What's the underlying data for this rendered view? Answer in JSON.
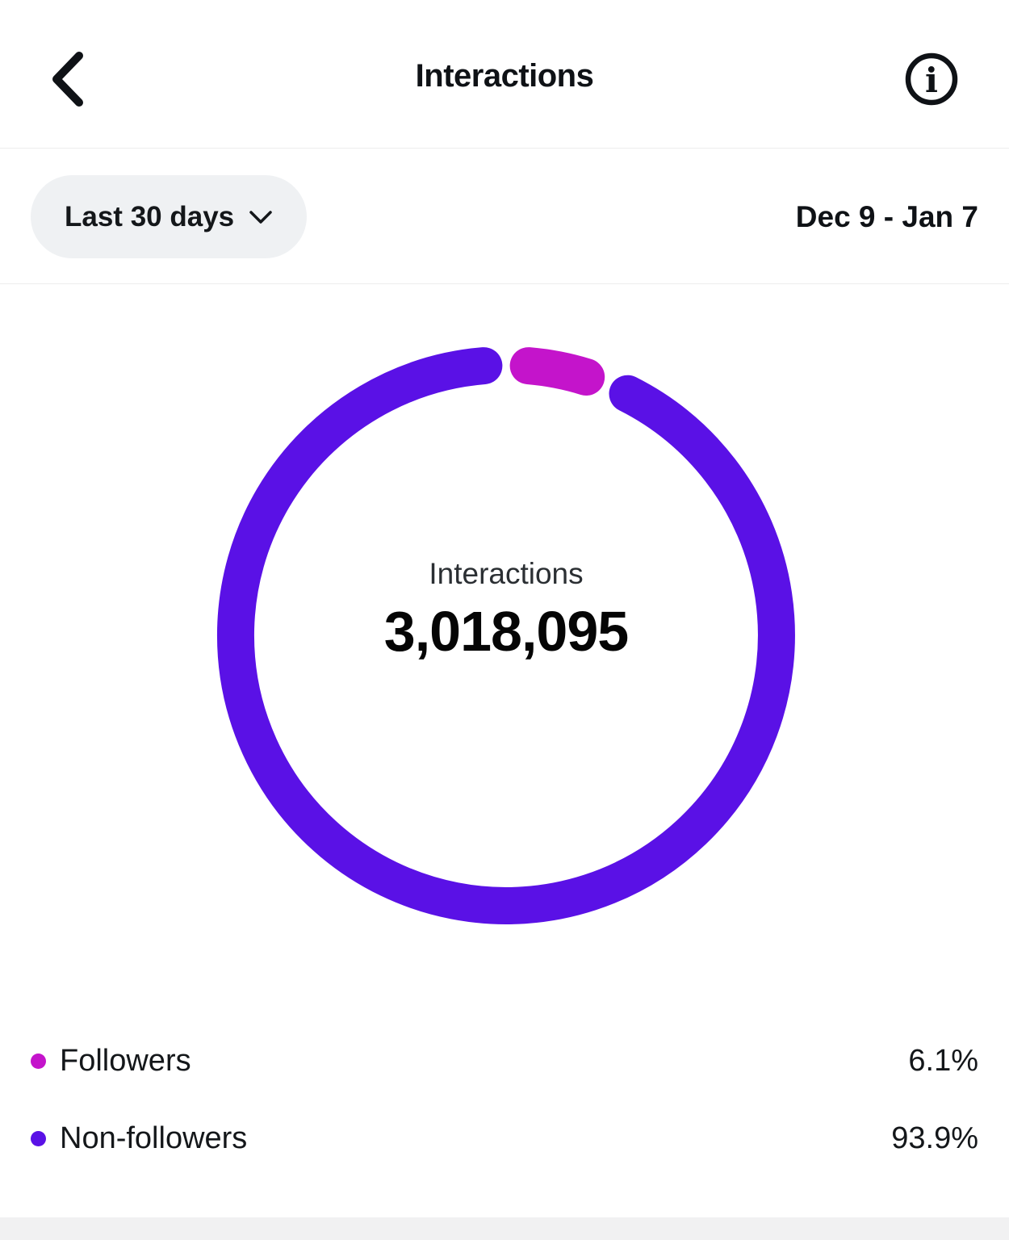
{
  "header": {
    "title": "Interactions"
  },
  "filter": {
    "range_label": "Last 30 days",
    "date_range": "Dec 9 - Jan 7"
  },
  "chart_data": {
    "type": "pie",
    "donut": true,
    "title": "Interactions",
    "center_label": "Interactions",
    "center_value": "3,018,095",
    "categories": [
      "Followers",
      "Non-followers"
    ],
    "values": [
      6.1,
      93.9
    ],
    "unit": "%",
    "colors": [
      "#c414cb",
      "#5a11e6"
    ],
    "legend_position": "bottom",
    "start_angle_deg": 0
  },
  "legend": {
    "items": [
      {
        "label": "Followers",
        "value": "6.1%",
        "color": "#c414cb"
      },
      {
        "label": "Non-followers",
        "value": "93.9%",
        "color": "#5a11e6"
      }
    ]
  }
}
